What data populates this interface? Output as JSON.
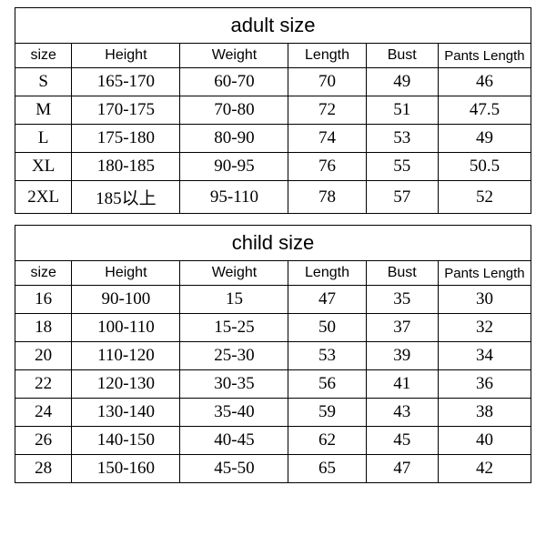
{
  "adult_table": {
    "title": "adult size",
    "columns": [
      "size",
      "Height",
      "Weight",
      "Length",
      "Bust",
      "Pants Length"
    ],
    "rows": [
      [
        "S",
        "165-170",
        "60-70",
        "70",
        "49",
        "46"
      ],
      [
        "M",
        "170-175",
        "70-80",
        "72",
        "51",
        "47.5"
      ],
      [
        "L",
        "175-180",
        "80-90",
        "74",
        "53",
        "49"
      ],
      [
        "XL",
        "180-185",
        "90-95",
        "76",
        "55",
        "50.5"
      ],
      [
        "2XL",
        "185以上",
        "95-110",
        "78",
        "57",
        "52"
      ]
    ]
  },
  "child_table": {
    "title": "child size",
    "columns": [
      "size",
      "Height",
      "Weight",
      "Length",
      "Bust",
      "Pants Length"
    ],
    "rows": [
      [
        "16",
        "90-100",
        "15",
        "47",
        "35",
        "30"
      ],
      [
        "18",
        "100-110",
        "15-25",
        "50",
        "37",
        "32"
      ],
      [
        "20",
        "110-120",
        "25-30",
        "53",
        "39",
        "34"
      ],
      [
        "22",
        "120-130",
        "30-35",
        "56",
        "41",
        "36"
      ],
      [
        "24",
        "130-140",
        "35-40",
        "59",
        "43",
        "38"
      ],
      [
        "26",
        "140-150",
        "40-45",
        "62",
        "45",
        "40"
      ],
      [
        "28",
        "150-160",
        "45-50",
        "65",
        "47",
        "42"
      ]
    ]
  },
  "style": {
    "border_color": "#000000",
    "background_color": "#ffffff",
    "title_fontsize": 22,
    "header_fontsize": 16,
    "cell_fontsize": 19,
    "cell_fontfamily": "Times New Roman"
  }
}
